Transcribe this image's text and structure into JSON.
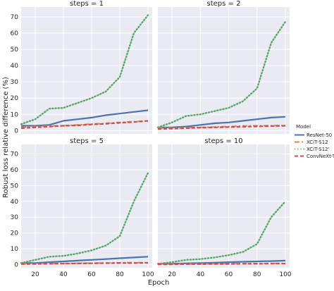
{
  "chart_data": {
    "type": "line",
    "ylabel": "Robust loss relative difference (%)",
    "xlabel": "Epoch",
    "xlim": [
      10,
      103
    ],
    "ylim": [
      -2,
      76
    ],
    "xticks": [
      20,
      40,
      60,
      80,
      100
    ],
    "yticks": [
      0,
      10,
      20,
      30,
      40,
      50,
      60,
      70
    ],
    "legend": {
      "title": "Model",
      "position": "right"
    },
    "series_styles": [
      {
        "name": "ResNet-50",
        "color": "#4c72b0",
        "dash": "",
        "width": 2.2
      },
      {
        "name": "XCiT-S12",
        "color": "#dd8452",
        "dash": "7,3,2,3",
        "width": 2.2
      },
      {
        "name": "XCiT-S12'",
        "color": "#55a868",
        "dash": "1.2,3",
        "width": 2.4
      },
      {
        "name": "ConvNeXt-T",
        "color": "#c44e52",
        "dash": "5,3",
        "width": 2.2
      }
    ],
    "panels": [
      {
        "title": "steps = 1",
        "x": [
          10,
          20,
          30,
          40,
          50,
          60,
          70,
          80,
          90,
          100
        ],
        "series": [
          {
            "name": "ResNet-50",
            "values": [
              3,
              3,
              3.5,
              6,
              7,
              8,
              9.5,
              10.5,
              11.5,
              12.5
            ]
          },
          {
            "name": "XCiT-S12",
            "values": [
              2,
              2.5,
              2.8,
              3,
              3.5,
              4,
              4.5,
              5,
              5.5,
              6
            ]
          },
          {
            "name": "XCiT-S12'",
            "values": [
              4,
              7,
              13.5,
              14,
              17,
              20,
              24,
              33,
              60,
              71
            ]
          },
          {
            "name": "ConvNeXt-T",
            "values": [
              1.5,
              2,
              2.5,
              3,
              3.2,
              3.8,
              4.2,
              4.8,
              5.3,
              6
            ]
          }
        ]
      },
      {
        "title": "steps = 2",
        "x": [
          10,
          20,
          30,
          40,
          50,
          60,
          70,
          80,
          90,
          100
        ],
        "series": [
          {
            "name": "ResNet-50",
            "values": [
              2,
              2,
              2.5,
              3.5,
              4.5,
              5,
              6,
              7,
              8,
              8.5
            ]
          },
          {
            "name": "XCiT-S12",
            "values": [
              1.5,
              1.5,
              1.8,
              2,
              2.2,
              2.5,
              2.8,
              3,
              3,
              3.2
            ]
          },
          {
            "name": "XCiT-S12'",
            "values": [
              2,
              5,
              9,
              10,
              12,
              14,
              18,
              26,
              54,
              67
            ]
          },
          {
            "name": "ConvNeXt-T",
            "values": [
              1,
              1.2,
              1.5,
              1.8,
              2,
              2.2,
              2.4,
              2.6,
              2.8,
              3
            ]
          }
        ]
      },
      {
        "title": "steps = 5",
        "x": [
          10,
          20,
          30,
          40,
          50,
          60,
          70,
          80,
          90,
          100
        ],
        "series": [
          {
            "name": "ResNet-50",
            "values": [
              1,
              1,
              1.5,
              2,
              2.5,
              3,
              3.5,
              4,
              4.5,
              5
            ]
          },
          {
            "name": "XCiT-S12",
            "values": [
              0.5,
              0.5,
              0.6,
              0.7,
              0.8,
              0.9,
              1,
              1.1,
              1.2,
              1.2
            ]
          },
          {
            "name": "XCiT-S12'",
            "values": [
              1,
              3,
              5,
              5.5,
              7,
              9,
              12,
              18,
              40,
              58
            ]
          },
          {
            "name": "ConvNeXt-T",
            "values": [
              0.3,
              0.4,
              0.5,
              0.6,
              0.7,
              0.8,
              0.9,
              1,
              1,
              1.1
            ]
          }
        ]
      },
      {
        "title": "steps = 10",
        "x": [
          10,
          20,
          30,
          40,
          50,
          60,
          70,
          80,
          90,
          100
        ],
        "series": [
          {
            "name": "ResNet-50",
            "values": [
              0.5,
              0.5,
              0.8,
              1,
              1.2,
              1.5,
              1.8,
              2,
              2.2,
              2.5
            ]
          },
          {
            "name": "XCiT-S12",
            "values": [
              0.3,
              0.3,
              0.4,
              0.4,
              0.5,
              0.5,
              0.6,
              0.6,
              0.7,
              0.7
            ]
          },
          {
            "name": "XCiT-S12'",
            "values": [
              0.5,
              1.5,
              3,
              3.5,
              4.5,
              6,
              8,
              13,
              30,
              40
            ]
          },
          {
            "name": "ConvNeXt-T",
            "values": [
              0.2,
              0.2,
              0.3,
              0.3,
              0.4,
              0.4,
              0.5,
              0.5,
              0.6,
              0.6
            ]
          }
        ]
      }
    ]
  }
}
